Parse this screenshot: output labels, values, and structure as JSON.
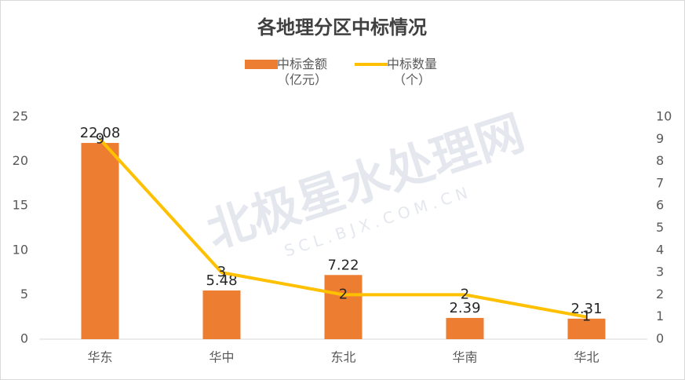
{
  "chart_data": {
    "type": "bar",
    "title": "各地理分区中标情况",
    "watermark": "北极星水处理网",
    "watermark_sub": "SCL.BJX.COM.CN",
    "categories": [
      "华东",
      "华中",
      "东北",
      "华南",
      "华北"
    ],
    "series": [
      {
        "name": "中标金额（亿元）",
        "type": "bar",
        "color": "#ED7D31",
        "values": [
          22.08,
          5.48,
          7.22,
          2.39,
          2.31
        ]
      },
      {
        "name": "中标数量（个）",
        "type": "line",
        "axis": "y2",
        "color": "#FFC000",
        "values": [
          9,
          3,
          2,
          2,
          1
        ]
      }
    ],
    "ylim": [
      0,
      25
    ],
    "yticks": [
      0,
      5,
      10,
      15,
      20,
      25
    ],
    "y2lim": [
      0,
      10
    ],
    "y2ticks": [
      0,
      1,
      2,
      3,
      4,
      5,
      6,
      7,
      8,
      9,
      10
    ],
    "grid": false,
    "legend": "top"
  }
}
